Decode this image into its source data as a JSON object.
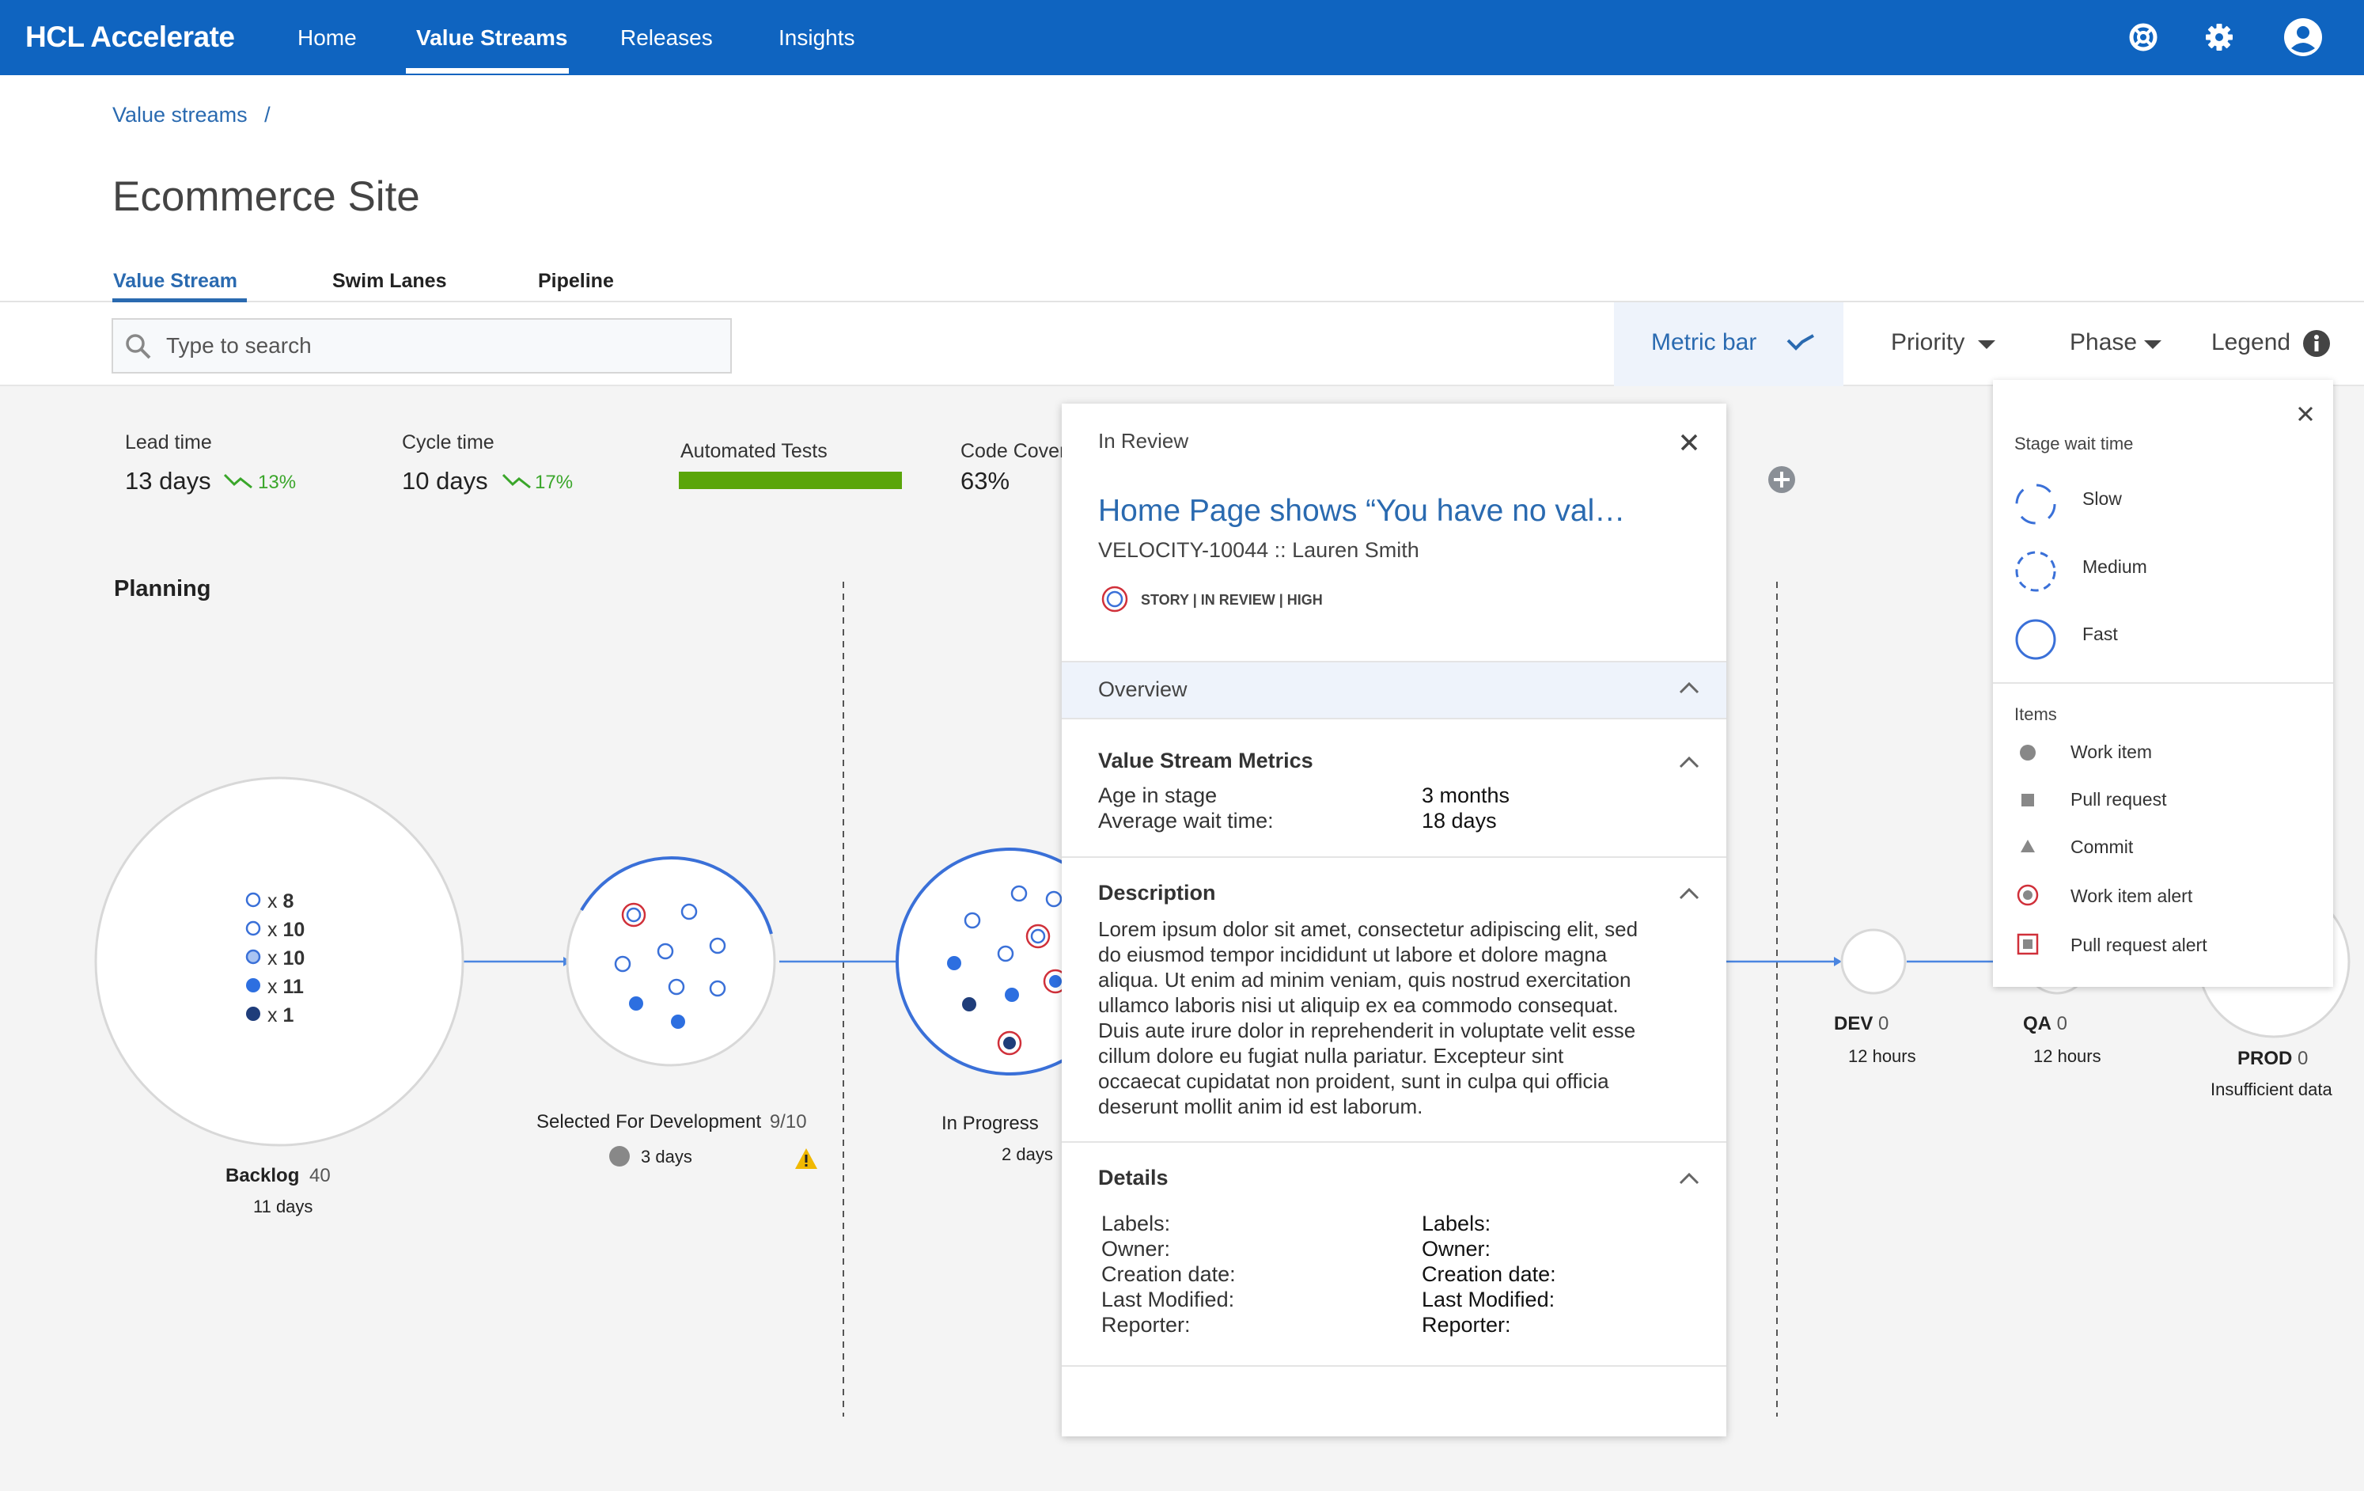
{
  "app": {
    "brand": "HCL Accelerate"
  },
  "nav": {
    "items": [
      {
        "label": "Home"
      },
      {
        "label": "Value Streams"
      },
      {
        "label": "Releases"
      },
      {
        "label": "Insights"
      }
    ],
    "active": "Value Streams"
  },
  "icons": {
    "help": "lifebuoy-icon",
    "settings": "gear-icon",
    "account": "user-icon",
    "search": "search-icon",
    "close": "close-icon",
    "chevron_up": "chevron-up-icon",
    "caret_down": "caret-down-icon",
    "info": "info-icon",
    "add": "plus-icon",
    "warning": "warning-icon"
  },
  "breadcrumb": {
    "item": "Value streams",
    "separator": "/"
  },
  "page": {
    "title": "Ecommerce Site"
  },
  "tabs": [
    {
      "label": "Value Stream"
    },
    {
      "label": "Swim Lanes"
    },
    {
      "label": "Pipeline"
    }
  ],
  "search": {
    "placeholder": "Type to search",
    "value": ""
  },
  "toolbar": {
    "metric_bar": "Metric bar",
    "priority": "Priority",
    "phase": "Phase",
    "legend": "Legend"
  },
  "metrics": {
    "lead_time": {
      "label": "Lead time",
      "value": "13 days",
      "trend": "13%"
    },
    "cycle_time": {
      "label": "Cycle time",
      "value": "10 days",
      "trend": "17%"
    },
    "automated_tests": {
      "label": "Automated Tests",
      "progress": 1.0
    },
    "code_coverage": {
      "label": "Code Cover",
      "value": "63%"
    }
  },
  "phase": {
    "label": "Planning"
  },
  "backlog": {
    "name": "Backlog",
    "count": "40",
    "time": "11 days",
    "items": [
      {
        "symbol": "x",
        "count": "8"
      },
      {
        "symbol": "x",
        "count": "10"
      },
      {
        "symbol": "x",
        "count": "10"
      },
      {
        "symbol": "x",
        "count": "11"
      },
      {
        "symbol": "x",
        "count": "1"
      }
    ]
  },
  "stages": {
    "selected": {
      "name": "Selected For Development",
      "count": "9/10",
      "time": "3 days"
    },
    "in_progress": {
      "name": "In Progress",
      "time": "2 days"
    },
    "dev": {
      "name": "DEV",
      "count": "0",
      "time": "12 hours"
    },
    "qa": {
      "name": "QA",
      "count": "0",
      "time": "12 hours"
    },
    "prod": {
      "name": "PROD",
      "count": "0",
      "time": "Insufficient data"
    }
  },
  "detail": {
    "status": "In Review",
    "title": "Home Page shows “You have no val…",
    "subtitle": "VELOCITY-10044 :: Lauren Smith",
    "tags": "STORY |  IN REVIEW | HIGH",
    "overview": "Overview",
    "metrics": {
      "title": "Value Stream Metrics",
      "rows": [
        {
          "label": "Age in stage",
          "value": "3 months"
        },
        {
          "label": "Average wait time:",
          "value": "18 days"
        }
      ]
    },
    "description": {
      "title": "Description",
      "lines": [
        "Lorem ipsum dolor sit amet, consectetur adipiscing elit, sed",
        "do eiusmod tempor incididunt ut labore et dolore magna",
        "aliqua. Ut enim ad minim veniam, quis nostrud exercitation",
        "ullamco laboris nisi ut aliquip ex ea commodo consequat.",
        "Duis aute irure dolor in reprehenderit in voluptate velit esse",
        "cillum dolore eu fugiat nulla pariatur. Excepteur sint",
        "occaecat cupidatat non proident, sunt in culpa qui officia",
        "deserunt mollit anim id est laborum."
      ]
    },
    "details": {
      "title": "Details",
      "labels": [
        "Labels:",
        "Owner:",
        "Creation date:",
        "Last Modified:",
        "Reporter:"
      ],
      "values": [
        "Labels:",
        "Owner:",
        "Creation date:",
        "Last Modified:",
        "Reporter:"
      ]
    }
  },
  "legend": {
    "wait_title": "Stage wait time",
    "wait_items": [
      {
        "label": "Slow"
      },
      {
        "label": "Medium"
      },
      {
        "label": "Fast"
      }
    ],
    "items_title": "Items",
    "items": [
      {
        "label": "Work item"
      },
      {
        "label": "Pull request"
      },
      {
        "label": "Commit"
      },
      {
        "label": "Work item alert"
      },
      {
        "label": "Pull request alert"
      }
    ]
  },
  "colors": {
    "brand": "#0f64c0",
    "accent": "#2a6ab0",
    "success": "#5aa50a",
    "alert": "#d0303a",
    "dot_light": "#6a9cf0",
    "dot_dark": "#1f3d7a",
    "dot_mid": "#2d6fe0",
    "grey": "#888888",
    "warning": "#f0b800"
  }
}
